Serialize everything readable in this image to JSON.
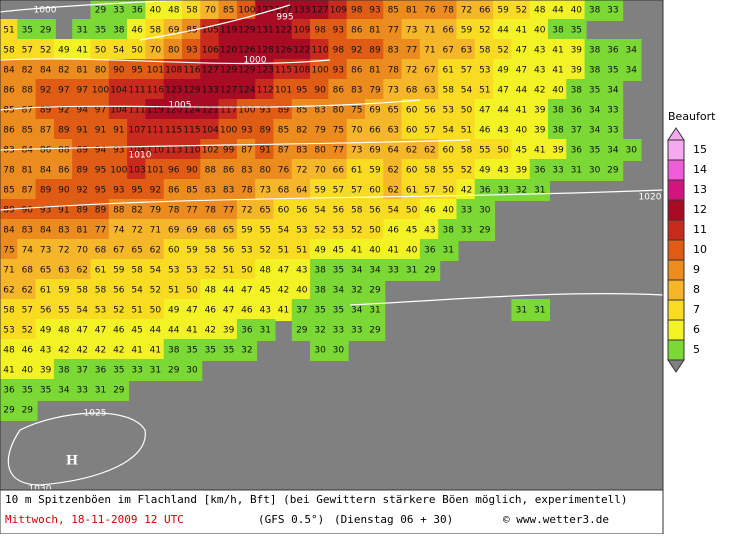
{
  "map": {
    "grid": [
      [
        null,
        null,
        null,
        null,
        null,
        29,
        33,
        36,
        40,
        48,
        58,
        70,
        85,
        100,
        122,
        127,
        133,
        127,
        109,
        98,
        93,
        85,
        81,
        76,
        78,
        72,
        66,
        59,
        52,
        48,
        44,
        40,
        38,
        33
      ],
      [
        51,
        35,
        29,
        null,
        31,
        35,
        38,
        46,
        58,
        69,
        85,
        105,
        119,
        129,
        131,
        122,
        109,
        98,
        93,
        86,
        81,
        77,
        73,
        71,
        66,
        59,
        52,
        44,
        41,
        40,
        38,
        35
      ],
      [
        58,
        57,
        52,
        49,
        41,
        50,
        54,
        50,
        70,
        80,
        93,
        106,
        120,
        126,
        128,
        126,
        122,
        110,
        98,
        92,
        89,
        83,
        77,
        71,
        67,
        63,
        58,
        52,
        47,
        43,
        41,
        39,
        38,
        36,
        34
      ],
      [
        84,
        82,
        84,
        82,
        81,
        80,
        90,
        95,
        101,
        108,
        116,
        127,
        129,
        129,
        123,
        115,
        108,
        100,
        93,
        86,
        81,
        78,
        72,
        67,
        61,
        57,
        53,
        49,
        47,
        43,
        41,
        39,
        38,
        35,
        34
      ],
      [
        86,
        88,
        92,
        97,
        97,
        100,
        104,
        111,
        116,
        123,
        129,
        133,
        127,
        124,
        112,
        101,
        95,
        90,
        86,
        83,
        79,
        73,
        68,
        63,
        58,
        54,
        51,
        47,
        44,
        42,
        40,
        38,
        35,
        34
      ],
      [
        85,
        87,
        89,
        92,
        94,
        97,
        104,
        111,
        119,
        120,
        124,
        121,
        117,
        100,
        93,
        89,
        85,
        83,
        80,
        75,
        69,
        65,
        60,
        56,
        53,
        50,
        47,
        44,
        41,
        39,
        38,
        36,
        34,
        33
      ],
      [
        86,
        85,
        87,
        89,
        91,
        91,
        91,
        107,
        111,
        115,
        115,
        104,
        100,
        93,
        89,
        85,
        82,
        79,
        75,
        70,
        66,
        63,
        60,
        57,
        54,
        51,
        46,
        43,
        40,
        39,
        38,
        37,
        34,
        33
      ],
      [
        83,
        84,
        86,
        88,
        89,
        94,
        93,
        104,
        110,
        113,
        110,
        102,
        99,
        87,
        91,
        87,
        83,
        80,
        77,
        73,
        69,
        64,
        62,
        62,
        60,
        58,
        55,
        50,
        45,
        41,
        39,
        36,
        35,
        34,
        30
      ],
      [
        78,
        81,
        84,
        86,
        89,
        95,
        100,
        103,
        101,
        96,
        90,
        88,
        86,
        83,
        80,
        76,
        72,
        70,
        66,
        61,
        59,
        62,
        60,
        58,
        55,
        52,
        49,
        43,
        39,
        36,
        33,
        31,
        30,
        29
      ],
      [
        85,
        87,
        89,
        90,
        92,
        95,
        93,
        95,
        92,
        86,
        85,
        83,
        83,
        78,
        73,
        68,
        64,
        59,
        57,
        57,
        60,
        62,
        61,
        57,
        50,
        42,
        36,
        33,
        32,
        31
      ],
      [
        89,
        90,
        93,
        91,
        89,
        89,
        88,
        82,
        79,
        78,
        77,
        78,
        77,
        72,
        65,
        60,
        56,
        54,
        56,
        58,
        56,
        54,
        50,
        46,
        40,
        33,
        30
      ],
      [
        84,
        83,
        84,
        83,
        81,
        77,
        74,
        72,
        71,
        69,
        69,
        68,
        65,
        59,
        55,
        54,
        53,
        52,
        53,
        52,
        50,
        46,
        45,
        43,
        38,
        33,
        29
      ],
      [
        75,
        74,
        73,
        72,
        70,
        68,
        67,
        65,
        62,
        60,
        59,
        58,
        56,
        53,
        52,
        51,
        51,
        49,
        45,
        41,
        40,
        41,
        40,
        36,
        31
      ],
      [
        71,
        68,
        65,
        63,
        62,
        61,
        59,
        58,
        54,
        53,
        53,
        52,
        51,
        50,
        48,
        47,
        43,
        38,
        35,
        34,
        34,
        33,
        31,
        29
      ],
      [
        62,
        62,
        61,
        59,
        58,
        58,
        56,
        54,
        52,
        51,
        50,
        48,
        44,
        47,
        45,
        42,
        40,
        38,
        34,
        32,
        29
      ],
      [
        58,
        57,
        56,
        55,
        54,
        53,
        52,
        51,
        50,
        49,
        47,
        46,
        47,
        46,
        43,
        41,
        37,
        35,
        35,
        34,
        31,
        null,
        null,
        null,
        null,
        null,
        null,
        null,
        31,
        31
      ],
      [
        53,
        52,
        49,
        48,
        47,
        47,
        46,
        45,
        44,
        44,
        41,
        42,
        39,
        36,
        31,
        null,
        29,
        32,
        33,
        33,
        29
      ],
      [
        48,
        46,
        43,
        42,
        42,
        42,
        42,
        41,
        41,
        38,
        35,
        35,
        35,
        32,
        null,
        null,
        null,
        30,
        30
      ],
      [
        41,
        40,
        39,
        38,
        37,
        36,
        35,
        33,
        31,
        29,
        30
      ],
      [
        36,
        35,
        35,
        34,
        33,
        31,
        29
      ],
      [
        29,
        29
      ]
    ],
    "isobars": [
      "1000",
      "995",
      "1000",
      "1005",
      "1010",
      "1020",
      "1025",
      "1030"
    ],
    "high": "H"
  },
  "legend": {
    "title": "Beaufort",
    "levels": [
      15,
      14,
      13,
      12,
      11,
      10,
      9,
      8,
      7,
      6,
      5
    ],
    "colors": [
      "#f5aaf0",
      "#ee5cd8",
      "#d4147e",
      "#a80c24",
      "#c82a1e",
      "#e05c14",
      "#ec8c1e",
      "#f6b62a",
      "#f9dc22",
      "#f2f224",
      "#7cd834"
    ]
  },
  "footer": {
    "line1": "10 m Spitzenböen im Flachland [km/h, Bft] (bei Gewittern stärkere Böen möglich, experimentell)",
    "date": "Mittwoch, 18-11-2009  12 UTC",
    "model": "(GFS 0.5°)",
    "run": "(Dienstag 06 + 30)",
    "source": "© www.wetter3.de"
  }
}
